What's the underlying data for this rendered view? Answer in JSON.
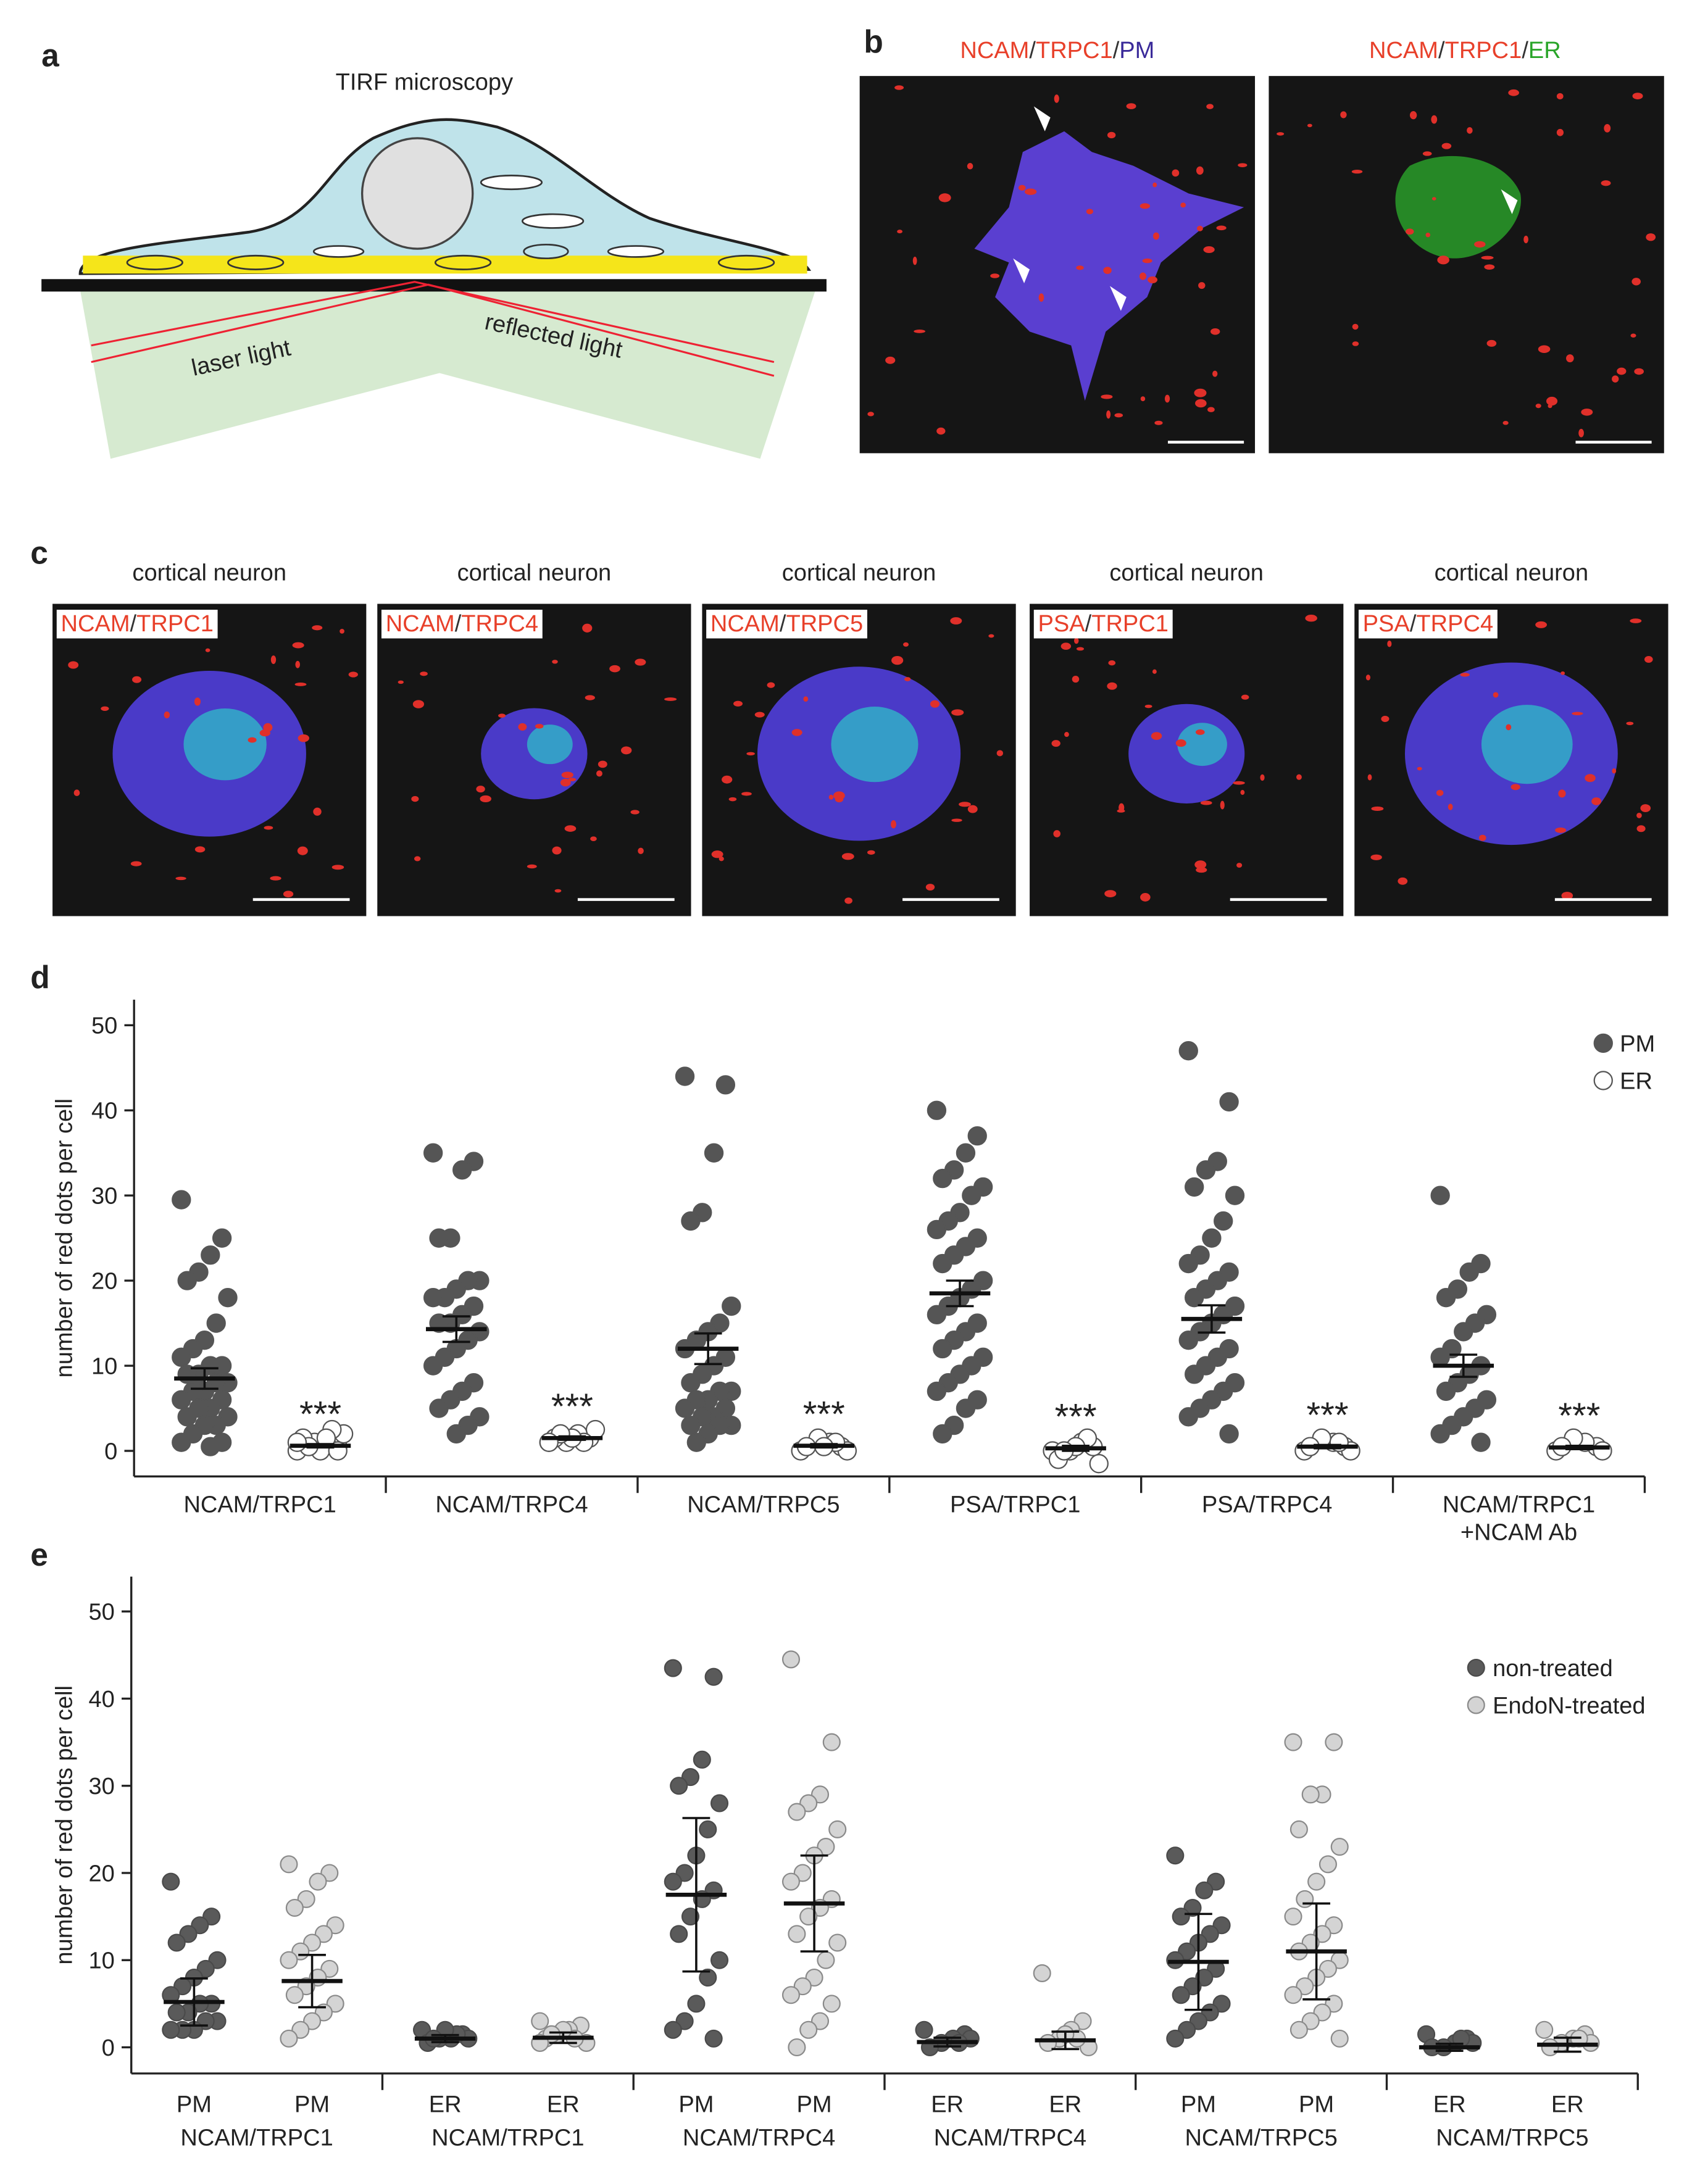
{
  "panel_a": {
    "label": "a",
    "title": "TIRF microscopy",
    "laser": "laser light",
    "reflected": "reflected light"
  },
  "panel_b": {
    "label": "b",
    "images": [
      {
        "labels": [
          {
            "text": "NCAM",
            "color": "#e8402a"
          },
          {
            "text": "/",
            "color": "#333333"
          },
          {
            "text": "TRPC1",
            "color": "#e8402a"
          },
          {
            "text": "/",
            "color": "#333333"
          },
          {
            "text": "PM",
            "color": "#3a2a9a"
          }
        ]
      },
      {
        "labels": [
          {
            "text": "NCAM",
            "color": "#e8402a"
          },
          {
            "text": "/",
            "color": "#333333"
          },
          {
            "text": "TRPC1",
            "color": "#e8402a"
          },
          {
            "text": "/",
            "color": "#333333"
          },
          {
            "text": "ER",
            "color": "#2aa52a"
          }
        ]
      }
    ]
  },
  "panel_c": {
    "label": "c",
    "images": [
      {
        "title": "cortical neuron",
        "labels": [
          {
            "text": "NCAM",
            "color": "#e8402a"
          },
          {
            "text": "/",
            "color": "#333333"
          },
          {
            "text": "TRPC1",
            "color": "#e8402a"
          }
        ]
      },
      {
        "title": "cortical neuron",
        "labels": [
          {
            "text": "NCAM",
            "color": "#e8402a"
          },
          {
            "text": "/",
            "color": "#333333"
          },
          {
            "text": "TRPC4",
            "color": "#e8402a"
          }
        ]
      },
      {
        "title": "cortical neuron",
        "labels": [
          {
            "text": "NCAM",
            "color": "#e8402a"
          },
          {
            "text": "/",
            "color": "#333333"
          },
          {
            "text": "TRPC5",
            "color": "#e8402a"
          }
        ]
      },
      {
        "title": "cortical neuron",
        "labels": [
          {
            "text": "PSA",
            "color": "#e8402a"
          },
          {
            "text": "/",
            "color": "#333333"
          },
          {
            "text": "TRPC1",
            "color": "#e8402a"
          }
        ]
      },
      {
        "title": "cortical neuron",
        "labels": [
          {
            "text": "PSA",
            "color": "#e8402a"
          },
          {
            "text": "/",
            "color": "#333333"
          },
          {
            "text": "TRPC4",
            "color": "#e8402a"
          }
        ]
      }
    ]
  },
  "chart_data": [
    {
      "type": "strip",
      "panel": "d",
      "ylabel": "number of red dots per cell",
      "ylim": [
        -3,
        53
      ],
      "yticks": [
        0,
        10,
        20,
        30,
        40,
        50
      ],
      "categories": [
        [
          "NCAM/TRPC1"
        ],
        [
          "NCAM/TRPC4"
        ],
        [
          "NCAM/TRPC5"
        ],
        [
          "PSA/TRPC1"
        ],
        [
          "PSA/TRPC4"
        ],
        [
          "NCAM/TRPC1",
          "+NCAM Ab"
        ]
      ],
      "legend": "top-right",
      "series": [
        {
          "name": "PM",
          "color": "#555555",
          "fill": "#555555",
          "values": [
            [
              29.5,
              25,
              23,
              21,
              20,
              18,
              15,
              13,
              12,
              11,
              10,
              10,
              9,
              9,
              8,
              8,
              7,
              7,
              6,
              6,
              5,
              5,
              4,
              4,
              3,
              3,
              2,
              1,
              1,
              0.5
            ],
            [
              35,
              34,
              33,
              25,
              25,
              20,
              20,
              19,
              18,
              18,
              17,
              16,
              15,
              15,
              14,
              13,
              12,
              11,
              10,
              8,
              7,
              6,
              5,
              4,
              3,
              2
            ],
            [
              44,
              43,
              35,
              28,
              27,
              17,
              15,
              14,
              13,
              12,
              11,
              10,
              9,
              8,
              7,
              7,
              6,
              6,
              5,
              5,
              4,
              4,
              3,
              3,
              3,
              2,
              1
            ],
            [
              40,
              37,
              35,
              33,
              32,
              31,
              30,
              28,
              27,
              26,
              25,
              24,
              23,
              22,
              20,
              19,
              18,
              17,
              16,
              15,
              14,
              13,
              12,
              11,
              10,
              9,
              8,
              7,
              6,
              5,
              3,
              2
            ],
            [
              47,
              41,
              34,
              33,
              31,
              30,
              27,
              25,
              23,
              22,
              21,
              20,
              19,
              18,
              17,
              16,
              15,
              14,
              13,
              12,
              11,
              10,
              9,
              8,
              7,
              6,
              5,
              4,
              2
            ],
            [
              30,
              22,
              21,
              19,
              18,
              16,
              15,
              14,
              12,
              11,
              10,
              9,
              8,
              7,
              6,
              5,
              4,
              3,
              2,
              1
            ]
          ],
          "mean": [
            8.5,
            14.3,
            12,
            18.5,
            15.5,
            10
          ],
          "error": [
            1.2,
            1.5,
            1.8,
            1.5,
            1.6,
            1.3
          ]
        },
        {
          "name": "ER",
          "color": "#555555",
          "fill": "#ffffff",
          "values": [
            [
              0,
              0.5,
              1,
              1,
              1.5,
              2,
              2.5,
              0,
              0.5,
              1,
              0,
              1.5
            ],
            [
              1,
              1.5,
              2,
              1,
              1.5,
              2.5,
              1,
              1.5,
              2,
              1
            ],
            [
              0,
              0.5,
              1,
              1.5,
              0.5,
              0,
              1,
              0.5
            ],
            [
              0,
              0.5,
              1,
              0,
              -1,
              -1.5,
              1.5,
              0.5,
              0
            ],
            [
              0,
              0.5,
              1,
              1.5,
              0.5,
              0,
              1
            ],
            [
              0,
              0.5,
              1,
              1.5,
              0.5,
              0
            ]
          ],
          "mean": [
            0.6,
            1.5,
            0.6,
            0.3,
            0.5,
            0.4
          ],
          "error": [
            0.2,
            0.2,
            0.2,
            0.3,
            0.2,
            0.2
          ]
        }
      ],
      "annotations": [
        "***",
        "***",
        "***",
        "***",
        "***",
        "***"
      ]
    },
    {
      "type": "strip",
      "panel": "e",
      "ylabel": "number of red dots per cell",
      "ylim": [
        -3,
        54
      ],
      "yticks": [
        0,
        10,
        20,
        30,
        40,
        50
      ],
      "categories": [
        [
          "NCAM/TRPC1"
        ],
        [
          "NCAM/TRPC1"
        ],
        [
          "NCAM/TRPC4"
        ],
        [
          "NCAM/TRPC4"
        ],
        [
          "NCAM/TRPC5"
        ],
        [
          "NCAM/TRPC5"
        ]
      ],
      "sublabels": [
        [
          "PM",
          "PM"
        ],
        [
          "ER",
          "ER"
        ],
        [
          "PM",
          "PM"
        ],
        [
          "ER",
          "ER"
        ],
        [
          "PM",
          "PM"
        ],
        [
          "ER",
          "ER"
        ]
      ],
      "legend": "top-right",
      "series": [
        {
          "name": "non-treated",
          "color": "#4a4a4a",
          "fill": "#5a5a5a",
          "values": [
            [
              19,
              15,
              14,
              13,
              12,
              10,
              9,
              8,
              7,
              6,
              5,
              5,
              4,
              4,
              3,
              3,
              2,
              2,
              2
            ],
            [
              2,
              1.5,
              1,
              1,
              0.5,
              1,
              1.5,
              2,
              1
            ],
            [
              43.5,
              42.5,
              33,
              31,
              30,
              28,
              25,
              22,
              20,
              19,
              18,
              17,
              15,
              13,
              10,
              8,
              5,
              3,
              2,
              1
            ],
            [
              2,
              1.5,
              1,
              0.5,
              0,
              1,
              0.5
            ],
            [
              22,
              19,
              18,
              16,
              15,
              14,
              13,
              12,
              11,
              10,
              9,
              8,
              7,
              6,
              5,
              4,
              3,
              2,
              1
            ],
            [
              1.5,
              1,
              0.5,
              0,
              0,
              0.5,
              1
            ]
          ],
          "mean": [
            5.2,
            1,
            17.5,
            0.6,
            9.8,
            0
          ],
          "error": [
            2.7,
            0.4,
            8.8,
            0.5,
            5.5,
            0.4
          ]
        },
        {
          "name": "EndoN-treated",
          "color": "#8a8a8a",
          "fill": "#d4d4d4",
          "values": [
            [
              21,
              20,
              19,
              17,
              16,
              14,
              13,
              12,
              11,
              10,
              9,
              8,
              7,
              6,
              5,
              4,
              3,
              2,
              1
            ],
            [
              3,
              2.5,
              2,
              1.5,
              1,
              0.5,
              1,
              2,
              1.5,
              0.5
            ],
            [
              44.5,
              35,
              29,
              28,
              27,
              25,
              23,
              22,
              20,
              19,
              17,
              16,
              15,
              13,
              12,
              10,
              8,
              7,
              6,
              5,
              3,
              2,
              0
            ],
            [
              8.5,
              3,
              2,
              1,
              0.5,
              0,
              1,
              1.5
            ],
            [
              35,
              35,
              29,
              29,
              25,
              23,
              21,
              19,
              17,
              15,
              14,
              13,
              12,
              11,
              10,
              9,
              8,
              7,
              6,
              5,
              4,
              3,
              2,
              1
            ],
            [
              2,
              1.5,
              1,
              0.5,
              0,
              0.5,
              1
            ]
          ],
          "mean": [
            7.6,
            1.1,
            16.5,
            0.8,
            11,
            0.3
          ],
          "error": [
            3,
            0.6,
            5.5,
            1,
            5.5,
            0.8
          ]
        }
      ]
    }
  ]
}
